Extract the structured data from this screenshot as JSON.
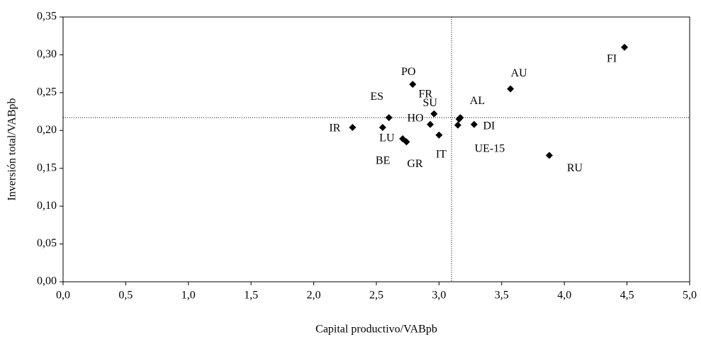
{
  "chart_data": {
    "type": "scatter",
    "xlabel": "Capital productivo/VABpb",
    "ylabel": "Inversión total/VABpb",
    "labels": [
      "IR",
      "LU",
      "ES",
      "BE",
      "GR",
      "PO",
      "FR",
      "HO",
      "IT",
      "SU",
      "AL",
      "UE-15",
      "DI",
      "AU",
      "RU",
      "FI"
    ],
    "x": [
      2.31,
      2.55,
      2.6,
      2.71,
      2.74,
      2.79,
      2.96,
      2.93,
      3.0,
      3.16,
      3.17,
      3.15,
      3.28,
      3.57,
      3.88,
      4.48
    ],
    "values": [
      0.204,
      0.204,
      0.217,
      0.189,
      0.185,
      0.261,
      0.222,
      0.208,
      0.194,
      0.215,
      0.217,
      0.207,
      0.208,
      0.255,
      0.167,
      0.31
    ],
    "color": "#000000",
    "ref_x": 3.1,
    "ref_y": 0.217,
    "xlim": [
      0,
      5
    ],
    "xticks": [
      {
        "value": 0,
        "label": "0,0"
      },
      {
        "value": 0.5,
        "label": "0,5"
      },
      {
        "value": 1,
        "label": "1,0"
      },
      {
        "value": 1.5,
        "label": "1,5"
      },
      {
        "value": 2,
        "label": "2,0"
      },
      {
        "value": 2.5,
        "label": "2,5"
      },
      {
        "value": 3,
        "label": "3,0"
      },
      {
        "value": 3.5,
        "label": "3,5"
      },
      {
        "value": 4,
        "label": "4,0"
      },
      {
        "value": 4.5,
        "label": "4,5"
      },
      {
        "value": 5,
        "label": "5,0"
      }
    ],
    "ylim": [
      0,
      0.35
    ],
    "yticks": [
      {
        "value": 0,
        "label": "0,00"
      },
      {
        "value": 0.05,
        "label": "0,05"
      },
      {
        "value": 0.1,
        "label": "0,10"
      },
      {
        "value": 0.15,
        "label": "0,15"
      },
      {
        "value": 0.2,
        "label": "0,20"
      },
      {
        "value": 0.25,
        "label": "0,25"
      },
      {
        "value": 0.3,
        "label": "0,30"
      },
      {
        "value": 0.35,
        "label": "0,35"
      }
    ]
  }
}
